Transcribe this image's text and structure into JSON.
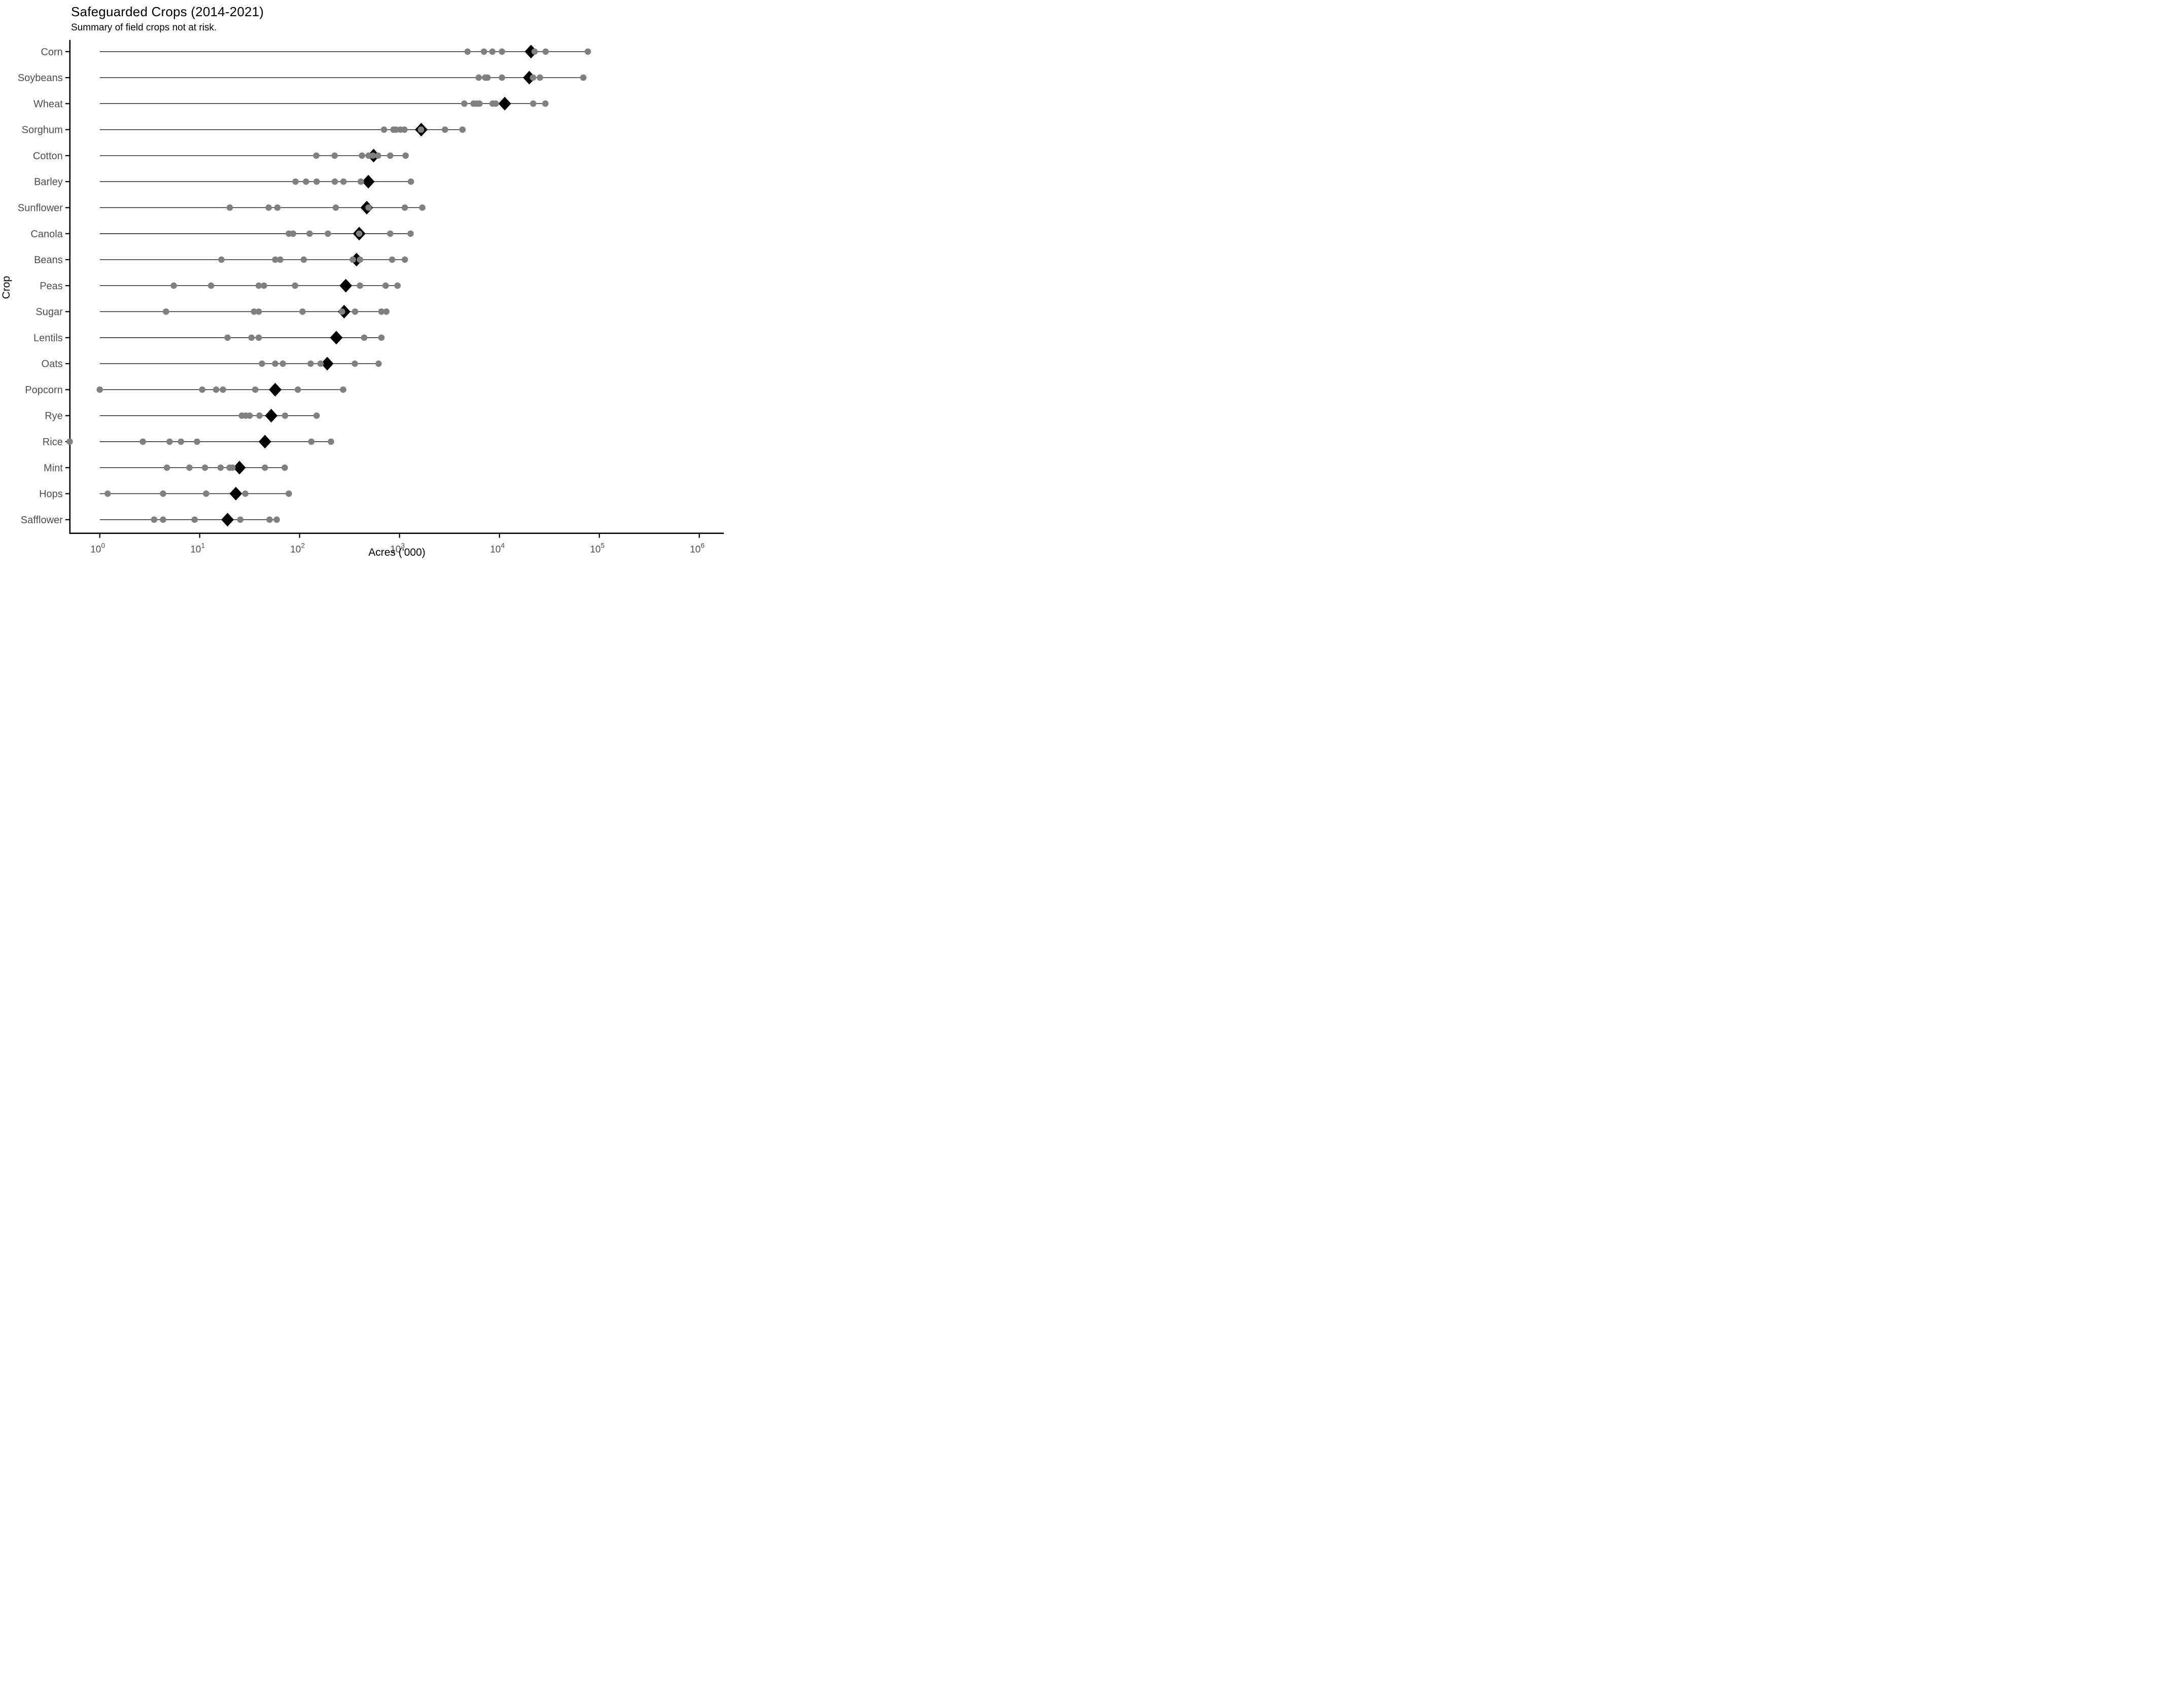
{
  "header": {
    "title": "Safeguarded Crops (2014-2021)",
    "subtitle": "Summary of field crops not at risk."
  },
  "colors": {
    "dot": "#808080",
    "summary_diamond": "#000000",
    "baseline": "#1a1a1a",
    "axis_line": "#000000",
    "tick_label": "#4d4d4d",
    "row_label": "#4d4d4d",
    "title_text": "#000000",
    "background": "#ffffff"
  },
  "chart_data": {
    "type": "scatter",
    "variant": "dot-strip-with-summary-diamonds",
    "title": "Safeguarded Crops (2014-2021)",
    "subtitle": "Summary of field crops not at risk.",
    "xlabel": "Acres ('000)",
    "ylabel": "Crop",
    "x_scale": "log10",
    "grid": "off",
    "legend": "none",
    "x_tick_base": 10,
    "x_tick_exponents": [
      0,
      1,
      2,
      3,
      4,
      5,
      6
    ],
    "x_axis_range": [
      0.45,
      1500000
    ],
    "baseline_start_value": 1,
    "marker_styles": {
      "point": "gray-circle",
      "summary": "black-diamond"
    },
    "rows": [
      {
        "crop": "Corn",
        "points": [
          4800,
          7000,
          8500,
          10600,
          22500,
          29000,
          76700
        ],
        "summary": 20700
      },
      {
        "crop": "Soybeans",
        "points": [
          6200,
          7200,
          7600,
          10600,
          21700,
          25400,
          69100
        ],
        "summary": 19900
      },
      {
        "crop": "Wheat",
        "points": [
          4450,
          5500,
          5890,
          6310,
          8550,
          9180,
          21800,
          28800
        ],
        "summary": 11300
      },
      {
        "crop": "Sorghum",
        "points": [
          700,
          870,
          920,
          1020,
          1120,
          1640,
          2850,
          4270
        ],
        "summary": 1650
      },
      {
        "crop": "Cotton",
        "points": [
          147,
          224,
          421,
          490,
          540,
          610,
          807,
          1150
        ],
        "summary": 550
      },
      {
        "crop": "Barley",
        "points": [
          91,
          116,
          148,
          225,
          275,
          410,
          1300
        ],
        "summary": 487
      },
      {
        "crop": "Sunflower",
        "points": [
          20,
          49,
          60,
          230,
          490,
          1130,
          1690
        ],
        "summary": 470
      },
      {
        "crop": "Canola",
        "points": [
          78,
          86,
          126,
          192,
          395,
          807,
          1290
        ],
        "summary": 395
      },
      {
        "crop": "Beans",
        "points": [
          16.5,
          57,
          64,
          110,
          341,
          402,
          843,
          1130
        ],
        "summary": 371
      },
      {
        "crop": "Peas",
        "points": [
          5.5,
          13,
          39,
          44,
          90,
          402,
          726,
          955
        ],
        "summary": 290
      },
      {
        "crop": "Sugar",
        "points": [
          4.6,
          35,
          39,
          107,
          266,
          359,
          659,
          738
        ],
        "summary": 279
      },
      {
        "crop": "Lentils",
        "points": [
          19,
          33,
          39,
          443,
          659
        ],
        "summary": 233
      },
      {
        "crop": "Oats",
        "points": [
          42,
          57,
          68,
          129,
          162,
          357,
          617
        ],
        "summary": 189
      },
      {
        "crop": "Popcorn",
        "points": [
          1.0,
          10.6,
          14.6,
          17.1,
          36,
          96,
          273
        ],
        "summary": 57
      },
      {
        "crop": "Rye",
        "points": [
          26.4,
          28.9,
          31.6,
          39.7,
          71.5,
          148
        ],
        "summary": 52
      },
      {
        "crop": "Rice",
        "points": [
          0.5,
          2.7,
          5.0,
          6.5,
          9.4,
          131,
          206
        ],
        "summary": 45
      },
      {
        "crop": "Mint",
        "points": [
          4.7,
          7.9,
          11.3,
          16.2,
          19.9,
          21.3,
          45,
          71
        ],
        "summary": 25
      },
      {
        "crop": "Hops",
        "points": [
          1.2,
          4.3,
          11.6,
          28.6,
          78
        ],
        "summary": 23
      },
      {
        "crop": "Safflower",
        "points": [
          3.5,
          4.3,
          8.9,
          25.5,
          50,
          59
        ],
        "summary": 19
      }
    ]
  }
}
